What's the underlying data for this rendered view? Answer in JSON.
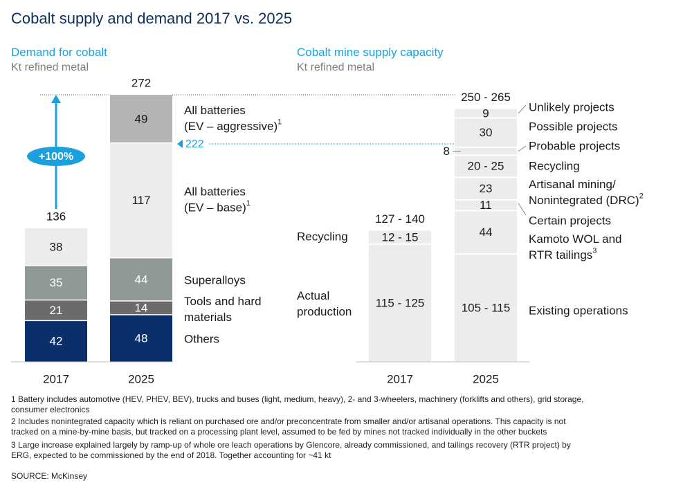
{
  "title": "Cobalt supply and demand 2017 vs. 2025",
  "footnotes": [
    "1 Battery includes automotive (HEV, PHEV, BEV), trucks and buses (light, medium, heavy), 2- and 3-wheelers, machinery (forklifts and others), grid storage,",
    "   consumer electronics",
    "2 Includes nonintegrated capacity which is reliant on purchased ore and/or preconcentrate from smaller and/or artisanal operations. This capacity is not",
    "   tracked on a mine-by-mine basis, but tracked on a processing plant level, assumed to be fed by mines not tracked individually in the other buckets",
    "3 Large increase explained largely by ramp-up of whole ore leach operations by Glencore, already commissioned, and tailings recovery (RTR project) by",
    "   ERG, expected to be commissioned by the end of 2018. Together accounting for ~41 kt"
  ],
  "source": "SOURCE: McKinsey",
  "colors": {
    "others": "#0b2f6b",
    "tools": "#6b6b6b",
    "superalloys": "#8f9a96",
    "batteries_base": "#ececec",
    "batteries_aggressive": "#b2b5b4",
    "supply": "#ececec",
    "accent": "#1aa0dc",
    "title": "#0b2f5b"
  },
  "chart_data": [
    {
      "type": "bar",
      "stacked": true,
      "title": "Demand for cobalt",
      "ylabel": "Kt refined metal",
      "categories": [
        "2017",
        "2025"
      ],
      "series": [
        {
          "name": "Others",
          "values": [
            42,
            48
          ]
        },
        {
          "name": "Tools and hard materials",
          "values": [
            21,
            14
          ]
        },
        {
          "name": "Superalloys",
          "values": [
            35,
            44
          ]
        },
        {
          "name": "All batteries (EV – base)",
          "values": [
            38,
            117
          ]
        },
        {
          "name": "All batteries (EV – aggressive)",
          "values": [
            null,
            49
          ]
        }
      ],
      "totals": [
        "136",
        "272"
      ],
      "series_labels": [
        {
          "text": "Others"
        },
        {
          "lines": [
            "Tools and hard",
            "materials"
          ]
        },
        {
          "text": "Superalloys"
        },
        {
          "lines": [
            "All batteries",
            "(EV – base)"
          ],
          "sup": "1"
        },
        {
          "lines": [
            "All batteries",
            "(EV – aggressive)"
          ],
          "sup": "1"
        }
      ],
      "annotations": {
        "growth": "+100%",
        "base_total": "222"
      },
      "ylim": [
        0,
        272
      ]
    },
    {
      "type": "bar",
      "stacked": true,
      "title": "Cobalt mine supply capacity",
      "ylabel": "Kt refined metal",
      "categories": [
        "2017",
        "2025"
      ],
      "bar_2017": [
        {
          "label": "115 - 125",
          "value": 120,
          "category": "Actual production"
        },
        {
          "label": "12 - 15",
          "value": 13.5,
          "category": "Recycling"
        }
      ],
      "bar_2017_total": "127 - 140",
      "bar_2017_category_labels": [
        {
          "lines": [
            "Actual",
            "production"
          ]
        },
        {
          "lines": [
            "Recycling"
          ]
        }
      ],
      "bar_2025": [
        {
          "label": "105 - 115",
          "value": 110,
          "category": "Existing operations"
        },
        {
          "label": "44",
          "value": 44,
          "category": "Kamoto WOL and RTR tailings"
        },
        {
          "label": "11",
          "value": 11,
          "category": "Certain projects"
        },
        {
          "label": "23",
          "value": 23,
          "category": "Artisanal mining/ Nonintegrated (DRC)"
        },
        {
          "label": "20 - 25",
          "value": 22.5,
          "category": "Recycling"
        },
        {
          "label": "8",
          "value": 8,
          "category": "Probable projects"
        },
        {
          "label": "30",
          "value": 30,
          "category": "Possible projects"
        },
        {
          "label": "9",
          "value": 9,
          "category": "Unlikely projects"
        }
      ],
      "bar_2025_total": "250 - 265",
      "bar_2025_category_labels": [
        {
          "lines": [
            "Existing operations"
          ]
        },
        {
          "lines": [
            "Kamoto WOL and",
            "RTR tailings"
          ],
          "sup": "3"
        },
        {
          "lines": [
            "Certain projects"
          ]
        },
        {
          "lines": [
            "Artisanal mining/",
            "Nonintegrated (DRC)"
          ],
          "sup": "2"
        },
        {
          "lines": [
            "Recycling"
          ]
        },
        {
          "lines": [
            "Probable projects"
          ]
        },
        {
          "lines": [
            "Possible projects"
          ]
        },
        {
          "lines": [
            "Unlikely projects"
          ]
        }
      ]
    }
  ]
}
